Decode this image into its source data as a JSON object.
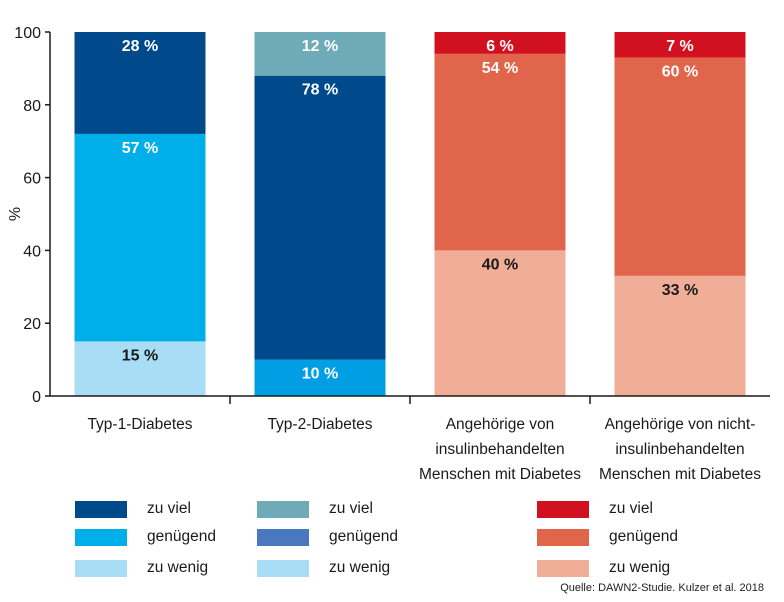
{
  "chart_data": {
    "type": "bar",
    "stacked": true,
    "ylabel": "%",
    "ylim": [
      0,
      100
    ],
    "yticks": [
      0,
      20,
      40,
      60,
      80,
      100
    ],
    "grid": false,
    "categories": [
      "Typ-1-Diabetes",
      "Typ-2-Diabetes",
      "Angehörige von insulinbehandelten Menschen mit Diabetes",
      "Angehörige von nicht-insulinbehandelten Menschen mit Diabetes"
    ],
    "category_lines": [
      [
        "Typ-1-Diabetes"
      ],
      [
        "Typ-2-Diabetes"
      ],
      [
        "Angehörige von",
        "insulinbehandelten",
        "Menschen mit Diabetes"
      ],
      [
        "Angehörige von nicht-",
        "insulinbehandelten",
        "Menschen mit Diabetes"
      ]
    ],
    "series_names": [
      "zu wenig",
      "genügend",
      "zu viel"
    ],
    "bars": [
      {
        "values": [
          15,
          57,
          28
        ],
        "labels": [
          "15 %",
          "57 %",
          "28 %"
        ],
        "colors": [
          "#a9dcf5",
          "#00aee9",
          "#004a8c"
        ],
        "label_colors": [
          "#1a1a1a",
          "#ffffff",
          "#ffffff"
        ]
      },
      {
        "values": [
          10,
          78,
          12
        ],
        "labels": [
          "10 %",
          "78 %",
          "12 %"
        ],
        "colors": [
          "#009fe3",
          "#004a8c",
          "#6eaab8"
        ],
        "label_colors": [
          "#ffffff",
          "#ffffff",
          "#ffffff"
        ]
      },
      {
        "values": [
          40,
          54,
          6
        ],
        "labels": [
          "40 %",
          "54 %",
          "6 %"
        ],
        "colors": [
          "#f0ae98",
          "#e1654a",
          "#d1111f"
        ],
        "label_colors": [
          "#1a1a1a",
          "#ffffff",
          "#ffffff"
        ]
      },
      {
        "values": [
          33,
          60,
          7
        ],
        "labels": [
          "33 %",
          "60 %",
          "7 %"
        ],
        "colors": [
          "#f0ae98",
          "#e1654a",
          "#d1111f"
        ],
        "label_colors": [
          "#1a1a1a",
          "#ffffff",
          "#ffffff"
        ]
      }
    ]
  },
  "legend": [
    [
      {
        "label": "zu viel",
        "color": "#004a8c"
      },
      {
        "label": "genügend",
        "color": "#00aee9"
      },
      {
        "label": "zu wenig",
        "color": "#a9dcf5"
      }
    ],
    [
      {
        "label": "zu viel",
        "color": "#6eaab8"
      },
      {
        "label": "genügend",
        "color": "#4a78bf"
      },
      {
        "label": "zu wenig",
        "color": "#a9dcf5"
      }
    ],
    [
      {
        "label": "zu viel",
        "color": "#d1111f"
      },
      {
        "label": "genügend",
        "color": "#e1654a"
      },
      {
        "label": "zu wenig",
        "color": "#f0ae98"
      }
    ]
  ],
  "source": "Quelle: DAWN2-Studie. Kulzer et al. 2018"
}
